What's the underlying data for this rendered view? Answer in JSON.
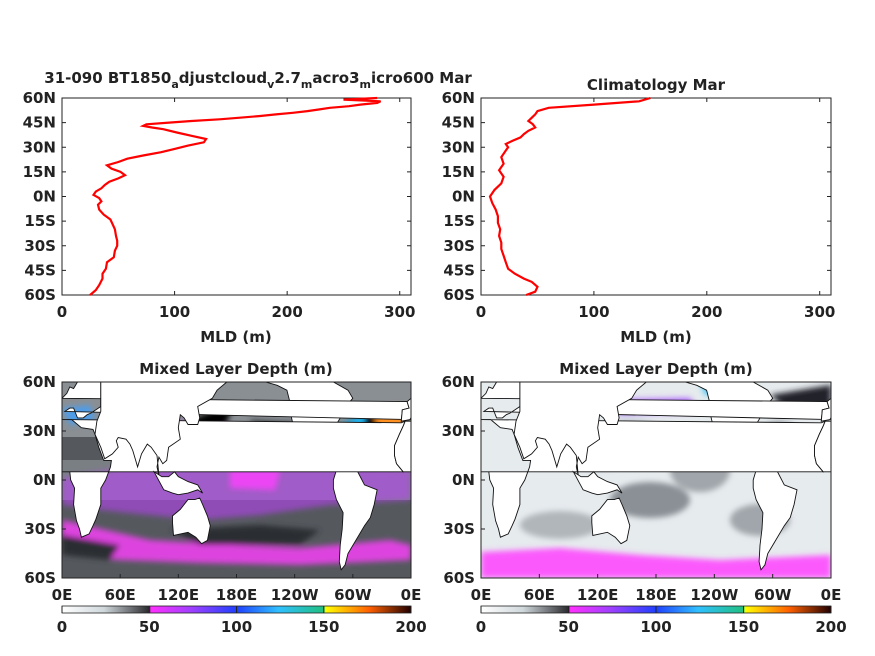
{
  "chart_data": [
    {
      "type": "line",
      "title_parts": [
        "31-090 BT1850",
        "a",
        "djustcloud",
        "v",
        "2.7",
        "m",
        "acro3",
        "m",
        "icro600 Mar"
      ],
      "xlabel": "MLD (m)",
      "xlim": [
        0,
        310
      ],
      "xticks": [
        "0",
        "100",
        "200",
        "300"
      ],
      "ylim": [
        -60,
        60
      ],
      "yticks": [
        "60N",
        "45N",
        "30N",
        "15N",
        "0N",
        "15S",
        "30S",
        "45S",
        "60S"
      ],
      "series": [
        {
          "color": "#ff0000",
          "y": [
            -60,
            -57,
            -54,
            -50,
            -47,
            -44,
            -40,
            -37,
            -33,
            -30,
            -27,
            -24,
            -20,
            -17,
            -14,
            -11,
            -8,
            -5,
            -3,
            -1,
            1,
            3,
            5,
            7,
            9,
            11,
            13,
            15,
            17,
            19,
            21,
            23,
            25,
            27,
            29,
            31,
            33,
            35,
            37,
            39,
            41,
            42,
            43,
            44,
            45,
            46,
            47,
            48,
            49,
            50,
            51,
            52,
            53,
            54,
            55,
            56,
            57,
            58,
            59,
            60
          ],
          "x": [
            25,
            30,
            33,
            36,
            36,
            39,
            40,
            46,
            47,
            49,
            49,
            48,
            47,
            45,
            43,
            37,
            33,
            32,
            35,
            33,
            28,
            30,
            35,
            38,
            42,
            50,
            56,
            52,
            44,
            40,
            50,
            58,
            72,
            88,
            100,
            112,
            126,
            128,
            115,
            102,
            90,
            80,
            72,
            75,
            95,
            115,
            140,
            158,
            175,
            190,
            205,
            218,
            228,
            238,
            255,
            265,
            280,
            283,
            250,
            280
          ]
        }
      ]
    },
    {
      "type": "line",
      "title": "Climatology Mar",
      "xlabel": "MLD (m)",
      "xlim": [
        0,
        310
      ],
      "xticks": [
        "0",
        "100",
        "200",
        "300"
      ],
      "ylim": [
        -60,
        60
      ],
      "yticks": [
        "60N",
        "45N",
        "30N",
        "15N",
        "0N",
        "15S",
        "30S",
        "45S",
        "60S"
      ],
      "series": [
        {
          "color": "#ff0000",
          "y": [
            -60,
            -58,
            -55,
            -52,
            -50,
            -47,
            -44,
            -40,
            -36,
            -32,
            -28,
            -24,
            -20,
            -16,
            -12,
            -8,
            -4,
            0,
            4,
            8,
            12,
            16,
            20,
            24,
            28,
            30,
            32,
            34,
            36,
            38,
            40,
            42,
            44,
            46,
            48,
            50,
            52,
            54,
            56,
            58,
            60
          ],
          "x": [
            40,
            48,
            50,
            45,
            38,
            30,
            24,
            22,
            20,
            18,
            18,
            16,
            17,
            15,
            15,
            13,
            10,
            8,
            12,
            18,
            20,
            16,
            20,
            18,
            22,
            24,
            22,
            28,
            35,
            38,
            42,
            48,
            46,
            42,
            45,
            48,
            50,
            60,
            100,
            140,
            150
          ]
        }
      ]
    },
    {
      "type": "heatmap",
      "title": "Mixed Layer Depth (m)",
      "xticks": [
        "0E",
        "60E",
        "120E",
        "180E",
        "120W",
        "60W",
        "0E"
      ],
      "yticks": [
        "60N",
        "30N",
        "0N",
        "30S",
        "60S"
      ],
      "colorbar": {
        "min": 0,
        "max": 200,
        "ticks": [
          "0",
          "50",
          "100",
          "150",
          "200"
        ]
      }
    },
    {
      "type": "heatmap",
      "title": "Mixed Layer Depth (m)",
      "xticks": [
        "0E",
        "60E",
        "120E",
        "180E",
        "120W",
        "60W",
        "0E"
      ],
      "yticks": [
        "60N",
        "30N",
        "0N",
        "30S",
        "60S"
      ],
      "colorbar": {
        "min": 0,
        "max": 200,
        "ticks": [
          "0",
          "50",
          "100",
          "150",
          "200"
        ]
      }
    }
  ]
}
